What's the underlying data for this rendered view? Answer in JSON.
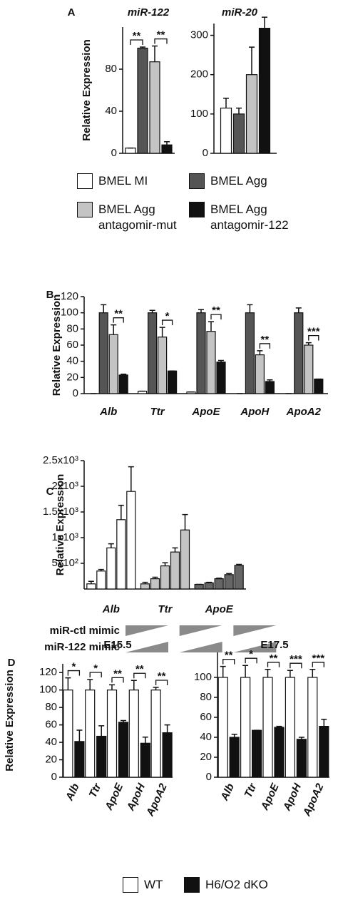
{
  "chart_data": [
    {
      "panel": "A",
      "type": "bar",
      "title": "miR-122",
      "ylabel": "Relative Expression",
      "categories": [
        null
      ],
      "series": [
        {
          "name": "BMEL MI",
          "color": "#ffffff",
          "values": [
            5
          ],
          "errors": [
            0
          ]
        },
        {
          "name": "BMEL Agg",
          "color": "#555555",
          "values": [
            100
          ],
          "errors": [
            1
          ]
        },
        {
          "name": "BMEL Agg antagomir-mut",
          "color": "#c4c4c4",
          "values": [
            87
          ],
          "errors": [
            15
          ]
        },
        {
          "name": "BMEL Agg antagomir-122",
          "color": "#111111",
          "values": [
            8
          ],
          "errors": [
            3
          ]
        }
      ],
      "annotations": [
        "**",
        "**"
      ],
      "ylim": [
        0,
        120
      ],
      "yticks": [
        0,
        40,
        80
      ]
    },
    {
      "type": "bar",
      "title": "miR-20",
      "categories": [
        null
      ],
      "series": [
        {
          "color": "#ffffff",
          "values": [
            115
          ],
          "errors": [
            25
          ]
        },
        {
          "color": "#555555",
          "values": [
            100
          ],
          "errors": [
            15
          ]
        },
        {
          "color": "#c4c4c4",
          "values": [
            200
          ],
          "errors": [
            70
          ]
        },
        {
          "color": "#111111",
          "values": [
            318
          ],
          "errors": [
            28
          ]
        }
      ],
      "ylim": [
        0,
        330
      ],
      "yticks": [
        0,
        100,
        200,
        300
      ]
    },
    {
      "panel": "B",
      "type": "bar",
      "ylabel": "Relative Expression",
      "categories": [
        "Alb",
        "Ttr",
        "ApoE",
        "ApoH",
        "ApoA2"
      ],
      "series": [
        {
          "color": "#ffffff",
          "values": [
            0,
            3,
            2,
            0,
            0
          ],
          "errors": [
            0,
            0,
            0,
            0,
            0
          ]
        },
        {
          "color": "#555555",
          "values": [
            100,
            100,
            100,
            100,
            100
          ],
          "errors": [
            10,
            3,
            4,
            10,
            6
          ]
        },
        {
          "color": "#c4c4c4",
          "values": [
            73,
            70,
            77,
            48,
            60
          ],
          "errors": [
            12,
            12,
            12,
            5,
            3
          ]
        },
        {
          "color": "#111111",
          "values": [
            23,
            28,
            39,
            15,
            18
          ],
          "errors": [
            1,
            0,
            2,
            2,
            0
          ]
        }
      ],
      "annotations": [
        "**",
        "*",
        "**",
        "**",
        "***"
      ],
      "ylim": [
        0,
        120
      ],
      "yticks": [
        0,
        20,
        40,
        60,
        80,
        100,
        120
      ]
    },
    {
      "panel": "C",
      "type": "bar",
      "ylabel": "Relative Expression",
      "categories": [
        "Alb",
        "Ttr",
        "ApoE"
      ],
      "category_colors": [
        "#ffffff",
        "#c4c4c4",
        "#666666"
      ],
      "series": [
        {
          "values": [
            100,
            100,
            90
          ],
          "errors": [
            50,
            30,
            0
          ]
        },
        {
          "values": [
            350,
            200,
            120
          ],
          "errors": [
            30,
            30,
            10
          ]
        },
        {
          "values": [
            800,
            450,
            200
          ],
          "errors": [
            80,
            60,
            10
          ]
        },
        {
          "values": [
            1350,
            720,
            280
          ],
          "errors": [
            280,
            80,
            20
          ]
        },
        {
          "values": [
            1900,
            1150,
            460
          ],
          "errors": [
            480,
            300,
            20
          ]
        }
      ],
      "row_labels": [
        "miR-ctl mimic",
        "miR-122 mimic"
      ],
      "ylim": [
        0,
        2500
      ],
      "yticks": [
        {
          "value": 500,
          "label": "5x10²"
        },
        {
          "value": 1000,
          "label": "1x10³"
        },
        {
          "value": 1500,
          "label": "1.5x10³"
        },
        {
          "value": 2000,
          "label": "2x10³"
        },
        {
          "value": 2500,
          "label": "2.5x10³"
        }
      ]
    },
    {
      "panel": "D",
      "type": "bar",
      "title": "E15.5",
      "ylabel": "Relative Expression",
      "categories": [
        "Alb",
        "Ttr",
        "ApoE",
        "ApoH",
        "ApoA2"
      ],
      "series": [
        {
          "name": "WT",
          "color": "#ffffff",
          "values": [
            100,
            100,
            100,
            100,
            100
          ],
          "errors": [
            14,
            12,
            6,
            11,
            3
          ]
        },
        {
          "name": "H6/O2 dKO",
          "color": "#111111",
          "values": [
            41,
            47,
            63,
            39,
            51
          ],
          "errors": [
            13,
            12,
            2,
            7,
            9
          ]
        }
      ],
      "annotations": [
        "*",
        "*",
        "**",
        "**",
        "**"
      ],
      "ylim": [
        0,
        130
      ],
      "yticks": [
        0,
        20,
        40,
        60,
        80,
        100,
        120
      ]
    },
    {
      "type": "bar",
      "title": "E17.5",
      "categories": [
        "Alb",
        "Ttr",
        "ApoE",
        "ApoH",
        "ApoA2"
      ],
      "series": [
        {
          "color": "#ffffff",
          "values": [
            100,
            100,
            100,
            100,
            100
          ],
          "errors": [
            11,
            12,
            8,
            7,
            8
          ]
        },
        {
          "color": "#111111",
          "values": [
            40,
            47,
            50,
            38,
            51
          ],
          "errors": [
            3,
            0,
            1,
            2,
            7
          ]
        }
      ],
      "annotations": [
        "**",
        "*",
        "**",
        "***",
        "***"
      ],
      "ylim": [
        0,
        125
      ],
      "yticks": [
        0,
        20,
        40,
        60,
        80,
        100
      ]
    }
  ]
}
